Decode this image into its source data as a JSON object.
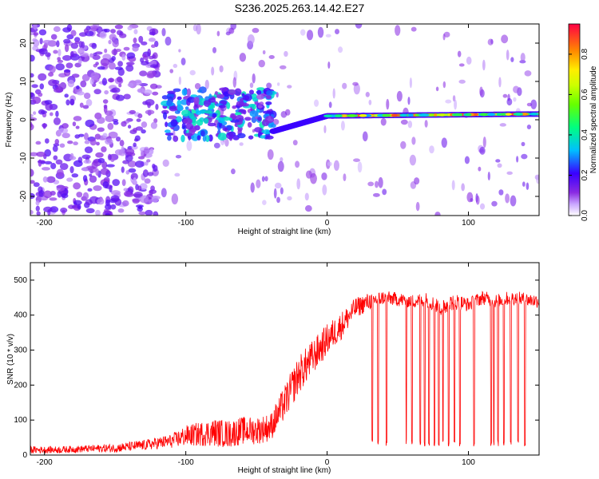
{
  "title": "S236.2025.263.14.42.E27",
  "chart_data": [
    {
      "type": "heatmap",
      "title": "S236.2025.263.14.42.E27",
      "xlabel": "Height of straight line (km)",
      "ylabel": "Frequency (Hz)",
      "xlim": [
        -210,
        150
      ],
      "ylim": [
        -25,
        25
      ],
      "x_ticks": [
        "-200",
        "-100",
        "0",
        "100"
      ],
      "x_tick_values": [
        -200,
        -100,
        0,
        100
      ],
      "y_ticks": [
        "20",
        "10",
        "0",
        "-10",
        "-20"
      ],
      "y_tick_values": [
        20,
        10,
        0,
        -10,
        -20
      ],
      "colorbar": {
        "label": "Normalized spectral amplitude",
        "range": [
          0.0,
          0.95
        ],
        "ticks": [
          "0.8",
          "0.6",
          "0.4",
          "0.2",
          "0.0"
        ],
        "tick_values": [
          0.8,
          0.6,
          0.4,
          0.2,
          0.0
        ]
      },
      "features": [
        {
          "name": "noise region",
          "x_range": [
            -210,
            -120
          ],
          "freq_range": [
            -25,
            25
          ],
          "amplitude": 0.15
        },
        {
          "name": "broad cluster",
          "x_range": [
            -115,
            -38
          ],
          "freq_range": [
            -5,
            8
          ],
          "amplitude": 0.25
        },
        {
          "name": "sloped band",
          "x_range": [
            -38,
            0
          ],
          "freq_start": -3,
          "freq_end": 1,
          "amplitude": 0.7
        },
        {
          "name": "straight band",
          "x_range": [
            0,
            150
          ],
          "freq_start": 1,
          "freq_end": 1.5,
          "amplitude": 0.85
        }
      ]
    },
    {
      "type": "line",
      "xlabel": "Height of straight line (km)",
      "ylabel": "SNR (10 * v/v)",
      "xlim": [
        -210,
        150
      ],
      "ylim": [
        0,
        550
      ],
      "x_ticks": [
        "-200",
        "-100",
        "0",
        "100"
      ],
      "x_tick_values": [
        -200,
        -100,
        0,
        100
      ],
      "y_ticks": [
        "0",
        "100",
        "200",
        "300",
        "400",
        "500"
      ],
      "y_tick_values": [
        0,
        100,
        200,
        300,
        400,
        500
      ],
      "color": "#ff0000",
      "series": [
        {
          "name": "SNR",
          "x": [
            -210,
            -190,
            -170,
            -150,
            -130,
            -110,
            -100,
            -90,
            -80,
            -70,
            -60,
            -50,
            -40,
            -30,
            -20,
            -10,
            0,
            10,
            20,
            30,
            40,
            50,
            60,
            70,
            80,
            90,
            100,
            110,
            120,
            130,
            140,
            150
          ],
          "values": [
            15,
            15,
            18,
            20,
            28,
            40,
            55,
            60,
            65,
            60,
            70,
            70,
            80,
            150,
            230,
            280,
            330,
            370,
            420,
            440,
            450,
            445,
            440,
            445,
            420,
            440,
            430,
            450,
            440,
            450,
            445,
            440
          ],
          "spread": [
            20,
            20,
            20,
            25,
            30,
            40,
            60,
            70,
            80,
            80,
            80,
            80,
            80,
            100,
            110,
            100,
            90,
            80,
            60,
            50,
            40,
            40,
            40,
            40,
            50,
            50,
            40,
            40,
            40,
            40,
            40,
            40
          ]
        }
      ],
      "dips": [
        32,
        36,
        42,
        56,
        60,
        66,
        69,
        72,
        76,
        79,
        82,
        86,
        90,
        94,
        104,
        116,
        118,
        121,
        125,
        130,
        135,
        140
      ]
    }
  ]
}
